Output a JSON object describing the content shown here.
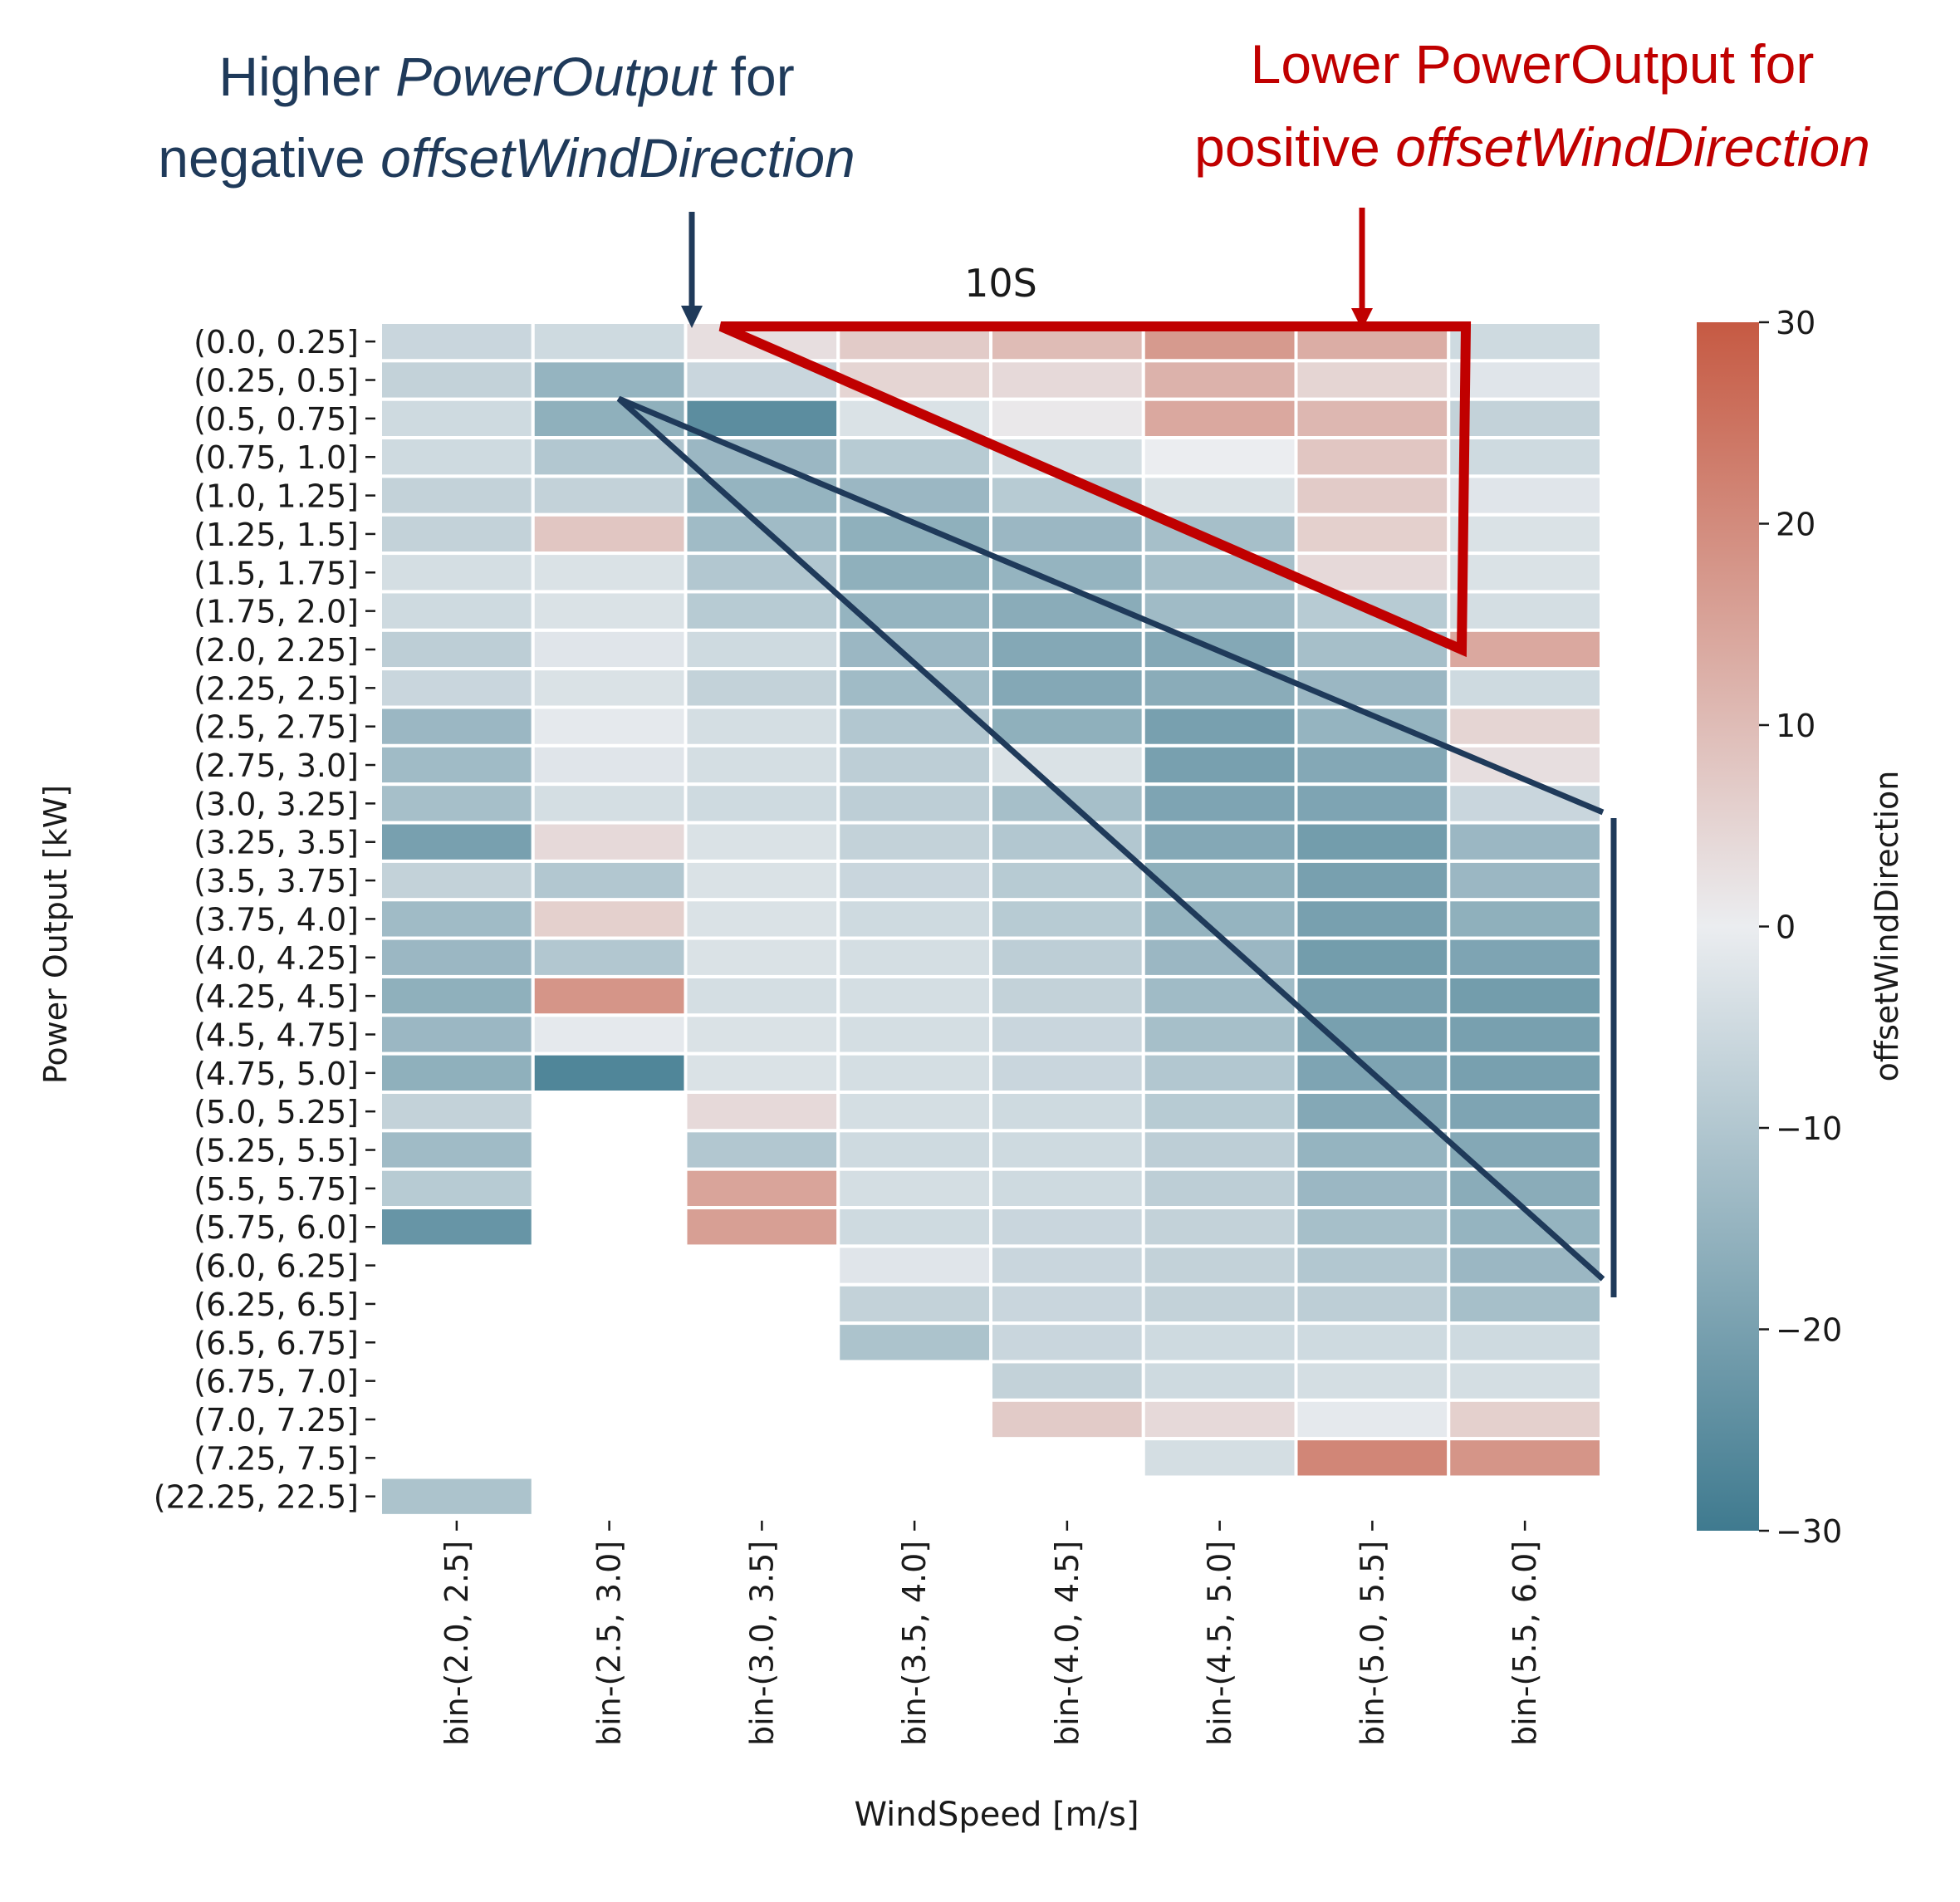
{
  "annotations": {
    "left_line1_a": "Higher ",
    "left_line1_b": "PowerOutput",
    "left_line1_c": " for",
    "left_line2_a": "negative ",
    "left_line2_b": "offsetWindDirection",
    "right_line1": "Lower PowerOutput for",
    "right_line2_a": "positive ",
    "right_line2_b": "offsetWindDirection",
    "left_color": "#1f3a5a",
    "right_color": "#c00000"
  },
  "chart_data": {
    "type": "heatmap",
    "title": "10S",
    "xlabel": "WindSpeed [m/s]",
    "ylabel": "Power Output [kW]",
    "colorbar_label": "offsetWindDirection",
    "colorbar_range": [
      -30,
      30
    ],
    "colorbar_ticks": [
      30,
      20,
      10,
      0,
      -10,
      -20,
      -30
    ],
    "colorbar_tick_labels": [
      "30",
      "20",
      "10",
      "0",
      "−10",
      "−20",
      "−30"
    ],
    "colormap": {
      "low": "#3f7a8f",
      "mid": "#ebedf0",
      "high": "#c65a43"
    },
    "x_categories": [
      "bin-(2.0, 2.5]",
      "bin-(2.5, 3.0]",
      "bin-(3.0, 3.5]",
      "bin-(3.5, 4.0]",
      "bin-(4.0, 4.5]",
      "bin-(4.5, 5.0]",
      "bin-(5.0, 5.5]",
      "bin-(5.5, 6.0]"
    ],
    "y_categories": [
      "(0.0, 0.25]",
      "(0.25, 0.5]",
      "(0.5, 0.75]",
      "(0.75, 1.0]",
      "(1.0, 1.25]",
      "(1.25, 1.5]",
      "(1.5, 1.75]",
      "(1.75, 2.0]",
      "(2.0, 2.25]",
      "(2.25, 2.5]",
      "(2.5, 2.75]",
      "(2.75, 3.0]",
      "(3.0, 3.25]",
      "(3.25, 3.5]",
      "(3.5, 3.75]",
      "(3.75, 4.0]",
      "(4.0, 4.25]",
      "(4.25, 4.5]",
      "(4.5, 4.75]",
      "(4.75, 5.0]",
      "(5.0, 5.25]",
      "(5.25, 5.5]",
      "(5.5, 5.75]",
      "(5.75, 6.0]",
      "(6.0, 6.25]",
      "(6.25, 6.5]",
      "(6.5, 6.75]",
      "(6.75, 7.0]",
      "(7.0, 7.25]",
      "(7.25, 7.5]",
      "(22.25, 22.5]"
    ],
    "values": [
      [
        -6,
        -5,
        3,
        7,
        10,
        17,
        13,
        -5
      ],
      [
        -7,
        -15,
        -6,
        5,
        4,
        12,
        5,
        -2
      ],
      [
        -5,
        -16,
        -25,
        -3,
        1,
        14,
        11,
        -7
      ],
      [
        -5,
        -10,
        -14,
        -9,
        -4,
        0,
        8,
        -5
      ],
      [
        -7,
        -7,
        -15,
        -14,
        -9,
        -3,
        7,
        -2
      ],
      [
        -7,
        8,
        -13,
        -16,
        -14,
        -12,
        6,
        -3
      ],
      [
        -4,
        -3,
        -10,
        -16,
        -15,
        -12,
        4,
        -3
      ],
      [
        -5,
        -3,
        -9,
        -15,
        -17,
        -13,
        -9,
        -4
      ],
      [
        -8,
        -2,
        -5,
        -14,
        -18,
        -18,
        -12,
        14
      ],
      [
        -6,
        -3,
        -7,
        -13,
        -18,
        -17,
        -14,
        -5
      ],
      [
        -14,
        -1,
        -4,
        -10,
        -16,
        -20,
        -15,
        5
      ],
      [
        -13,
        -2,
        -4,
        -8,
        -3,
        -20,
        -18,
        3
      ],
      [
        -12,
        -4,
        -5,
        -8,
        -12,
        -19,
        -19,
        -6
      ],
      [
        -20,
        4,
        -3,
        -7,
        -10,
        -18,
        -21,
        -14
      ],
      [
        -7,
        -10,
        -3,
        -6,
        -9,
        -16,
        -20,
        -14
      ],
      [
        -13,
        6,
        -3,
        -5,
        -9,
        -15,
        -20,
        -16
      ],
      [
        -14,
        -10,
        -3,
        -4,
        -8,
        -14,
        -21,
        -19
      ],
      [
        -16,
        18,
        -4,
        -4,
        -7,
        -13,
        -20,
        -21
      ],
      [
        -14,
        -1,
        -3,
        -4,
        -6,
        -12,
        -20,
        -20
      ],
      [
        -16,
        -27,
        -3,
        -4,
        -6,
        -10,
        -19,
        -20
      ],
      [
        -7,
        null,
        4,
        -4,
        -5,
        -9,
        -18,
        -19
      ],
      [
        -13,
        null,
        -10,
        -5,
        -5,
        -8,
        -15,
        -18
      ],
      [
        -9,
        null,
        15,
        -4,
        -5,
        -8,
        -14,
        -17
      ],
      [
        -23,
        null,
        16,
        -5,
        -6,
        -7,
        -12,
        -15
      ],
      [
        null,
        null,
        null,
        -2,
        -6,
        -7,
        -10,
        -14
      ],
      [
        null,
        null,
        null,
        -7,
        -6,
        -7,
        -8,
        -12
      ],
      [
        null,
        null,
        null,
        -11,
        -6,
        -5,
        -5,
        -5
      ],
      [
        null,
        null,
        null,
        null,
        -7,
        -5,
        -4,
        -4
      ],
      [
        null,
        null,
        null,
        null,
        7,
        4,
        -1,
        6
      ],
      [
        null,
        null,
        null,
        null,
        null,
        -4,
        21,
        18
      ],
      [
        -11,
        null,
        null,
        null,
        null,
        null,
        null,
        null
      ]
    ]
  }
}
